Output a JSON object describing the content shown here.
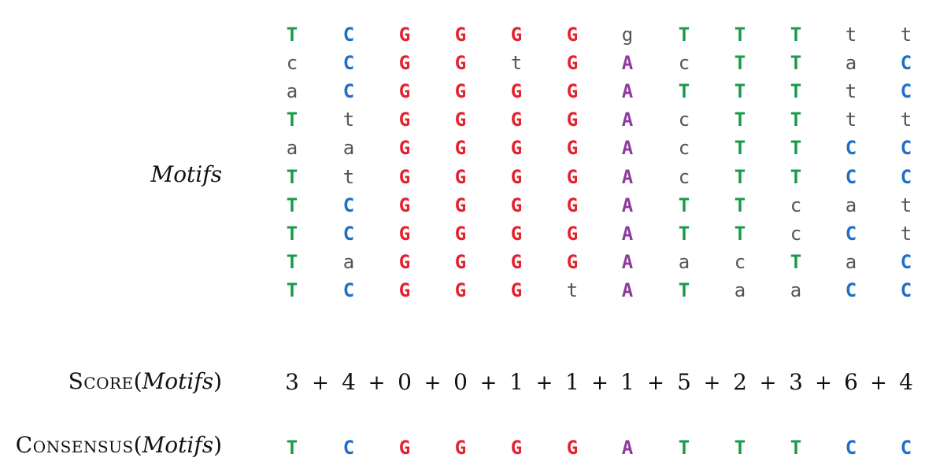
{
  "labels": {
    "motifs": "Motifs",
    "score_prefix": "Score",
    "consensus_prefix": "Consensus",
    "paren_open": "(",
    "paren_close": ")",
    "motifs_arg": "Motifs"
  },
  "colors": {
    "A": "#8e3a9c",
    "C": "#1f6fc6",
    "G": "#e2232f",
    "T": "#1a9a4a",
    "lowercase": "#555555"
  },
  "motifs": [
    [
      "T",
      "C",
      "G",
      "G",
      "G",
      "G",
      "g",
      "T",
      "T",
      "T",
      "t",
      "t"
    ],
    [
      "c",
      "C",
      "G",
      "G",
      "t",
      "G",
      "A",
      "c",
      "T",
      "T",
      "a",
      "C"
    ],
    [
      "a",
      "C",
      "G",
      "G",
      "G",
      "G",
      "A",
      "T",
      "T",
      "T",
      "t",
      "C"
    ],
    [
      "T",
      "t",
      "G",
      "G",
      "G",
      "G",
      "A",
      "c",
      "T",
      "T",
      "t",
      "t"
    ],
    [
      "a",
      "a",
      "G",
      "G",
      "G",
      "G",
      "A",
      "c",
      "T",
      "T",
      "C",
      "C"
    ],
    [
      "T",
      "t",
      "G",
      "G",
      "G",
      "G",
      "A",
      "c",
      "T",
      "T",
      "C",
      "C"
    ],
    [
      "T",
      "C",
      "G",
      "G",
      "G",
      "G",
      "A",
      "T",
      "T",
      "c",
      "a",
      "t"
    ],
    [
      "T",
      "C",
      "G",
      "G",
      "G",
      "G",
      "A",
      "T",
      "T",
      "c",
      "C",
      "t"
    ],
    [
      "T",
      "a",
      "G",
      "G",
      "G",
      "G",
      "A",
      "a",
      "c",
      "T",
      "a",
      "C"
    ],
    [
      "T",
      "C",
      "G",
      "G",
      "G",
      "t",
      "A",
      "T",
      "a",
      "a",
      "C",
      "C"
    ]
  ],
  "score": [
    "3",
    "4",
    "0",
    "0",
    "1",
    "1",
    "1",
    "5",
    "2",
    "3",
    "6",
    "4"
  ],
  "plus_sign": "+",
  "consensus": [
    "T",
    "C",
    "G",
    "G",
    "G",
    "G",
    "A",
    "T",
    "T",
    "T",
    "C",
    "C"
  ]
}
